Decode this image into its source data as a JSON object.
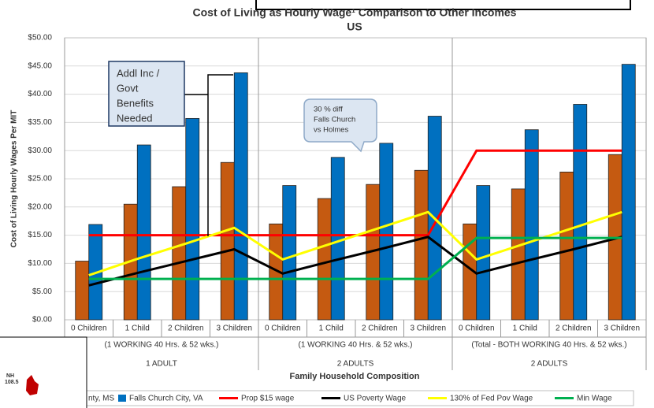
{
  "chart_data": {
    "type": "bar",
    "title": "Cost of Living as Hourly Wage¹ Comparison to Other Incomes",
    "subtitle": "US",
    "y_label": "Cost of Living Hourly Wages Per MIT",
    "x_label": "Family Household Composition",
    "categories": [
      "0 Children",
      "1 Child",
      "2 Children",
      "3 Children",
      "0 Children",
      "1 Child",
      "2 Children",
      "3 Children",
      "0 Children",
      "1 Child",
      "2 Children",
      "3 Children"
    ],
    "group_labels": [
      [
        "(1 WORKING 40 Hrs. & 52 wks.)",
        "1 ADULT"
      ],
      [
        "(1 WORKING 40 Hrs. & 52 wks.)",
        "2 ADULTS"
      ],
      [
        "(Total - BOTH WORKING 40 Hrs. & 52 wks.)",
        "2 ADULTS"
      ]
    ],
    "ylim": [
      0,
      50
    ],
    "yticks": [
      {
        "value": 0,
        "label": "$0.00"
      },
      {
        "value": 5,
        "label": "$5.00"
      },
      {
        "value": 10,
        "label": "$10.00"
      },
      {
        "value": 15,
        "label": "$15.00"
      },
      {
        "value": 20,
        "label": "$20.00"
      },
      {
        "value": 25,
        "label": "$25.00"
      },
      {
        "value": 30,
        "label": "$30.00"
      },
      {
        "value": 35,
        "label": "$35.00"
      },
      {
        "value": 40,
        "label": "$40.00"
      },
      {
        "value": 45,
        "label": "$45.00"
      },
      {
        "value": 50,
        "label": "$50.00"
      }
    ],
    "grid": true,
    "series": [
      {
        "name": "nty, MS",
        "kind": "bar",
        "color": "#c55a11",
        "values": [
          10.4,
          20.5,
          23.6,
          27.9,
          17.0,
          21.5,
          24.0,
          26.5,
          17.0,
          23.2,
          26.2,
          29.3
        ]
      },
      {
        "name": "Falls Church City, VA",
        "kind": "bar",
        "color": "#0070c0",
        "values": [
          16.9,
          31.0,
          35.7,
          43.8,
          23.8,
          28.8,
          31.3,
          36.1,
          23.8,
          33.7,
          38.2,
          45.3
        ]
      },
      {
        "name": "Prop $15 wage",
        "kind": "line",
        "color": "#ff0000",
        "values": [
          15,
          15,
          15,
          15,
          15,
          15,
          15,
          15,
          30,
          30,
          30,
          30
        ]
      },
      {
        "name": "US Poverty Wage",
        "kind": "line",
        "color": "#000000",
        "values": [
          6.1,
          8.3,
          10.4,
          12.5,
          8.2,
          10.4,
          12.5,
          14.7,
          8.2,
          10.4,
          12.5,
          14.7
        ]
      },
      {
        "name": "130% of Fed Pov Wage",
        "kind": "line",
        "color": "#ffff00",
        "values": [
          7.9,
          10.8,
          13.5,
          16.3,
          10.7,
          13.5,
          16.3,
          19.1,
          10.7,
          13.5,
          16.3,
          19.1
        ]
      },
      {
        "name": "Min Wage",
        "kind": "line",
        "color": "#00b050",
        "values": [
          7.25,
          7.25,
          7.25,
          7.25,
          7.25,
          7.25,
          7.25,
          7.25,
          14.5,
          14.5,
          14.5,
          14.5
        ]
      }
    ],
    "annotations": [
      [
        "Addl Inc /",
        "Govt",
        "Benefits",
        "Needed"
      ],
      [
        "30 % diff",
        "Falls Church",
        "vs Holmes"
      ]
    ],
    "overlay": [
      "NH",
      "108.5"
    ]
  }
}
